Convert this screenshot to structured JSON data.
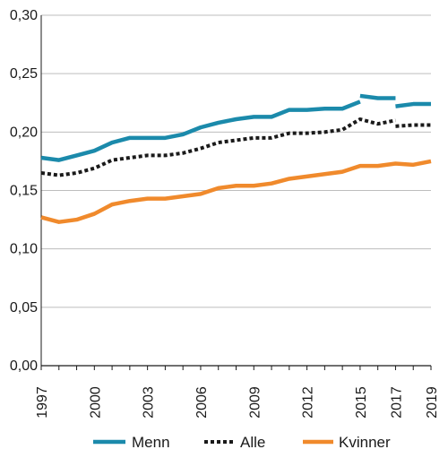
{
  "chart_data": {
    "type": "line",
    "ylim": [
      0,
      0.3
    ],
    "yticks": [
      "0,00",
      "0,05",
      "0,10",
      "0,15",
      "0,20",
      "0,25",
      "0,30"
    ],
    "xlim": [
      1997,
      2019
    ],
    "xticks": [
      "1997",
      "2000",
      "2003",
      "2006",
      "2009",
      "2012",
      "2015",
      "2017",
      "2019"
    ],
    "grid": true,
    "legend": "bottom",
    "series": [
      {
        "name": "Menn",
        "color": "#1b8aab",
        "style": "solid",
        "segments": [
          {
            "x": [
              1997,
              1998,
              1999,
              2000,
              2001,
              2002,
              2003,
              2004,
              2005,
              2006,
              2007,
              2008,
              2009,
              2010,
              2011,
              2012,
              2013,
              2014,
              2015
            ],
            "y": [
              0.178,
              0.176,
              0.18,
              0.184,
              0.191,
              0.195,
              0.195,
              0.195,
              0.198,
              0.204,
              0.208,
              0.211,
              0.213,
              0.213,
              0.219,
              0.219,
              0.22,
              0.22,
              0.226
            ]
          },
          {
            "x": [
              2015,
              2016,
              2017
            ],
            "y": [
              0.231,
              0.229,
              0.229
            ]
          },
          {
            "x": [
              2017,
              2018,
              2019
            ],
            "y": [
              0.222,
              0.224,
              0.224
            ]
          }
        ]
      },
      {
        "name": "Alle",
        "color": "#1a1a1a",
        "style": "dotted",
        "segments": [
          {
            "x": [
              1997,
              1998,
              1999,
              2000,
              2001,
              2002,
              2003,
              2004,
              2005,
              2006,
              2007,
              2008,
              2009,
              2010,
              2011,
              2012,
              2013,
              2014,
              2015,
              2016,
              2017
            ],
            "y": [
              0.165,
              0.163,
              0.165,
              0.169,
              0.176,
              0.178,
              0.18,
              0.18,
              0.182,
              0.186,
              0.191,
              0.193,
              0.195,
              0.195,
              0.199,
              0.199,
              0.2,
              0.202,
              0.211,
              0.207,
              0.21
            ]
          },
          {
            "x": [
              2017,
              2018,
              2019
            ],
            "y": [
              0.205,
              0.206,
              0.206
            ]
          }
        ]
      },
      {
        "name": "Kvinner",
        "color": "#f08a2c",
        "style": "solid",
        "segments": [
          {
            "x": [
              1997,
              1998,
              1999,
              2000,
              2001,
              2002,
              2003,
              2004,
              2005,
              2006,
              2007,
              2008,
              2009,
              2010,
              2011,
              2012,
              2013,
              2014,
              2015,
              2016,
              2017,
              2018,
              2019
            ],
            "y": [
              0.127,
              0.123,
              0.125,
              0.13,
              0.138,
              0.141,
              0.143,
              0.143,
              0.145,
              0.147,
              0.152,
              0.154,
              0.154,
              0.156,
              0.16,
              0.162,
              0.164,
              0.166,
              0.171,
              0.171,
              0.173,
              0.172,
              0.175
            ]
          }
        ]
      }
    ]
  }
}
